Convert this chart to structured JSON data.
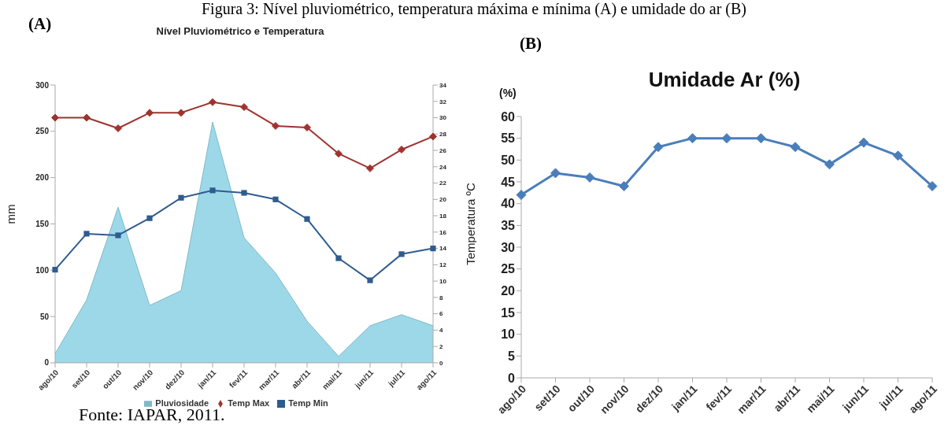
{
  "chart_data": [
    {
      "type": "area",
      "title": "Nível Pluviométrico e Temperatura",
      "ylabel": "mm",
      "y2label": "Temperatura ºC",
      "annotations": [
        "Figura 3: Nível pluviométrico, temperatura máxima e mínima (A) e umidade do ar (B)",
        "(A)",
        "Fonte: IAPAR, 2011."
      ],
      "categories": [
        "ago/10",
        "set/10",
        "out/10",
        "nov/10",
        "dez/10",
        "jan/11",
        "fev/11",
        "mar/11",
        "abr/11",
        "mai/11",
        "jun/11",
        "jul/11",
        "ago/11"
      ],
      "series": [
        {
          "name": "Pluviosidade",
          "color": "#9dd8e8",
          "marker": "none",
          "values": [
            10,
            68,
            168,
            62,
            78,
            260,
            135,
            97,
            45,
            7,
            40,
            52,
            40
          ]
        },
        {
          "name": "Temp Max",
          "type": "line",
          "axis": "y2",
          "color": "#a0332f",
          "marker": "diamond",
          "values": [
            30,
            30,
            28.7,
            30.6,
            30.6,
            31.9,
            31.3,
            29,
            28.8,
            25.6,
            23.8,
            26.1,
            27.7
          ]
        },
        {
          "name": "Temp Min",
          "type": "line",
          "axis": "y2",
          "color": "#2f5c8f",
          "marker": "square",
          "values": [
            11.4,
            15.8,
            15.6,
            17.7,
            20.2,
            21.1,
            20.8,
            20,
            17.6,
            12.8,
            10.1,
            13.3,
            14
          ]
        }
      ],
      "ylim": [
        0,
        300
      ],
      "yticks": [
        0,
        50,
        100,
        150,
        200,
        250,
        300
      ],
      "y2lim": [
        0,
        34
      ],
      "y2ticks": [
        0,
        2,
        4,
        6,
        8,
        10,
        12,
        14,
        16,
        18,
        20,
        22,
        24,
        26,
        28,
        30,
        32,
        34
      ],
      "grid": false,
      "legend": "bottom"
    },
    {
      "type": "line",
      "title": "Umidade Ar (%)",
      "ylabel": "(%)",
      "annotations": [
        "(B)"
      ],
      "categories": [
        "ago/10",
        "set/10",
        "out/10",
        "nov/10",
        "dez/10",
        "jan/11",
        "fev/11",
        "mar/11",
        "abr/11",
        "mai/11",
        "jun/11",
        "jul/11",
        "ago/11"
      ],
      "series": [
        {
          "color": "#4a7ebb",
          "values": [
            42,
            47,
            46,
            44,
            53,
            55,
            55,
            55,
            53,
            49,
            54,
            51,
            44
          ]
        }
      ],
      "ylim": [
        0,
        60
      ],
      "yticks": [
        0,
        5,
        10,
        15,
        20,
        25,
        30,
        35,
        40,
        45,
        50,
        55,
        60
      ],
      "marker": "diamond",
      "grid": false,
      "legend": false
    }
  ]
}
